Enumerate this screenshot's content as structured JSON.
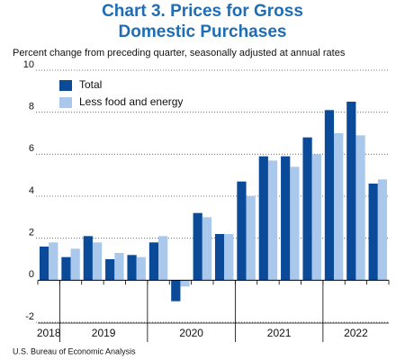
{
  "chart_data": {
    "type": "bar",
    "title": [
      "Chart 3. Prices for Gross",
      "Domestic Purchases"
    ],
    "subtitle": "Percent change from preceding quarter, seasonally adjusted at annual rates",
    "categories": [
      "2018",
      "2019",
      null,
      null,
      null,
      "2020",
      null,
      null,
      null,
      "2021",
      null,
      null,
      null,
      "2022",
      null,
      null
    ],
    "series": [
      {
        "name": "Total",
        "color": "#0b4a99",
        "values": [
          1.6,
          1.1,
          2.1,
          1.0,
          1.2,
          1.8,
          -1.0,
          3.2,
          2.2,
          4.7,
          5.9,
          5.9,
          6.8,
          8.1,
          8.5,
          4.6
        ]
      },
      {
        "name": "Less food and energy",
        "color": "#a9c8ec",
        "values": [
          1.8,
          1.5,
          1.8,
          1.3,
          1.1,
          2.1,
          -0.3,
          3.0,
          2.2,
          4.0,
          5.7,
          5.4,
          6.0,
          7.0,
          6.9,
          4.8
        ]
      }
    ],
    "ylim": [
      -2,
      10
    ],
    "yticks": [
      -2,
      0,
      2,
      4,
      6,
      8,
      10
    ],
    "grid": true,
    "legend": "top-left",
    "source": "U.S. Bureau of Economic Analysis"
  }
}
